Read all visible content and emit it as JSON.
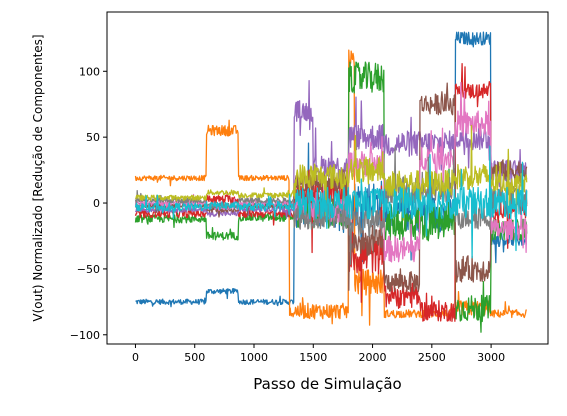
{
  "chart_data": {
    "type": "line",
    "xlabel": "Passo de Simulação",
    "ylabel": "V(out) Normalizado [Redução de Componentes]",
    "xlim": [
      -240,
      3480
    ],
    "ylim": [
      -107,
      145
    ],
    "xticks": [
      0,
      500,
      1000,
      1500,
      2000,
      2500,
      3000
    ],
    "yticks": [
      -100,
      -50,
      0,
      50,
      100
    ],
    "xtick_labels": [
      "0",
      "500",
      "1000",
      "1500",
      "2000",
      "2500",
      "3000"
    ],
    "ytick_labels": [
      "−100",
      "−50",
      "0",
      "50",
      "100"
    ],
    "grid": false,
    "legend": "none",
    "x_range": [
      0,
      3300
    ],
    "series": [
      {
        "color": "#1f77b4",
        "segments": [
          [
            0,
            600,
            -75,
            2
          ],
          [
            600,
            870,
            -67,
            2
          ],
          [
            870,
            1340,
            -75,
            2
          ],
          [
            1340,
            1800,
            -5,
            14
          ],
          [
            1800,
            2100,
            0,
            18
          ],
          [
            2100,
            2700,
            -8,
            14
          ],
          [
            2700,
            3000,
            125,
            5
          ],
          [
            3000,
            3300,
            -28,
            5
          ]
        ]
      },
      {
        "color": "#ff7f0e",
        "segments": [
          [
            0,
            600,
            19,
            2
          ],
          [
            600,
            870,
            55,
            4
          ],
          [
            870,
            1300,
            19,
            2
          ],
          [
            1340,
            1800,
            -82,
            6
          ],
          [
            1800,
            1850,
            110,
            6
          ],
          [
            1850,
            2100,
            -60,
            10
          ],
          [
            2100,
            2700,
            -84,
            3
          ],
          [
            2700,
            3000,
            -80,
            6
          ],
          [
            3000,
            3300,
            -84,
            3
          ]
        ]
      },
      {
        "color": "#2ca02c",
        "segments": [
          [
            0,
            600,
            -12,
            3
          ],
          [
            600,
            870,
            -25,
            3
          ],
          [
            870,
            1340,
            -11,
            3
          ],
          [
            1340,
            1800,
            -8,
            12
          ],
          [
            1800,
            2100,
            95,
            12
          ],
          [
            2100,
            2700,
            -15,
            14
          ],
          [
            2700,
            3000,
            -80,
            10
          ],
          [
            3000,
            3300,
            -20,
            8
          ]
        ]
      },
      {
        "color": "#d62728",
        "segments": [
          [
            0,
            600,
            -8,
            3
          ],
          [
            600,
            870,
            3,
            3
          ],
          [
            870,
            1340,
            -8,
            3
          ],
          [
            1340,
            1800,
            5,
            14
          ],
          [
            1800,
            2100,
            -40,
            14
          ],
          [
            2100,
            2400,
            -70,
            10
          ],
          [
            2400,
            2700,
            -82,
            8
          ],
          [
            2700,
            3000,
            85,
            6
          ],
          [
            3000,
            3300,
            -5,
            8
          ]
        ]
      },
      {
        "color": "#9467bd",
        "segments": [
          [
            0,
            600,
            -5,
            2
          ],
          [
            600,
            870,
            -8,
            2
          ],
          [
            870,
            1340,
            -5,
            2
          ],
          [
            1340,
            1500,
            70,
            8
          ],
          [
            1500,
            1800,
            28,
            8
          ],
          [
            1800,
            2100,
            50,
            10
          ],
          [
            2100,
            2700,
            45,
            10
          ],
          [
            2700,
            3000,
            50,
            10
          ],
          [
            3000,
            3300,
            25,
            8
          ]
        ]
      },
      {
        "color": "#8c564b",
        "segments": [
          [
            0,
            600,
            -2,
            2
          ],
          [
            600,
            870,
            -5,
            2
          ],
          [
            870,
            1340,
            -2,
            2
          ],
          [
            1340,
            1800,
            15,
            10
          ],
          [
            1800,
            2100,
            -30,
            10
          ],
          [
            2100,
            2400,
            -60,
            8
          ],
          [
            2400,
            2700,
            75,
            8
          ],
          [
            2700,
            3000,
            -50,
            10
          ],
          [
            3000,
            3300,
            25,
            8
          ]
        ]
      },
      {
        "color": "#e377c2",
        "segments": [
          [
            0,
            600,
            0,
            2
          ],
          [
            600,
            870,
            -3,
            2
          ],
          [
            870,
            1340,
            0,
            2
          ],
          [
            1340,
            1800,
            -5,
            10
          ],
          [
            1800,
            2100,
            30,
            10
          ],
          [
            2100,
            2400,
            -35,
            10
          ],
          [
            2400,
            2700,
            35,
            10
          ],
          [
            2700,
            3000,
            60,
            10
          ],
          [
            3000,
            3300,
            -20,
            8
          ]
        ]
      },
      {
        "color": "#7f7f7f",
        "segments": [
          [
            0,
            600,
            2,
            2
          ],
          [
            600,
            870,
            -2,
            2
          ],
          [
            870,
            1340,
            2,
            2
          ],
          [
            1340,
            1800,
            -10,
            10
          ],
          [
            1800,
            2100,
            -15,
            10
          ],
          [
            2100,
            2700,
            10,
            10
          ],
          [
            2700,
            3000,
            -10,
            10
          ],
          [
            3000,
            3300,
            5,
            8
          ]
        ]
      },
      {
        "color": "#bcbd22",
        "segments": [
          [
            0,
            600,
            4,
            2
          ],
          [
            600,
            870,
            8,
            2
          ],
          [
            870,
            1340,
            6,
            2
          ],
          [
            1340,
            1800,
            20,
            10
          ],
          [
            1800,
            2100,
            25,
            10
          ],
          [
            2100,
            2700,
            15,
            10
          ],
          [
            2700,
            3000,
            20,
            10
          ],
          [
            3000,
            3300,
            15,
            8
          ]
        ]
      },
      {
        "color": "#17becf",
        "segments": [
          [
            0,
            600,
            -3,
            3
          ],
          [
            600,
            870,
            -2,
            3
          ],
          [
            870,
            1340,
            -3,
            3
          ],
          [
            1340,
            3300,
            0,
            12
          ]
        ]
      }
    ]
  }
}
